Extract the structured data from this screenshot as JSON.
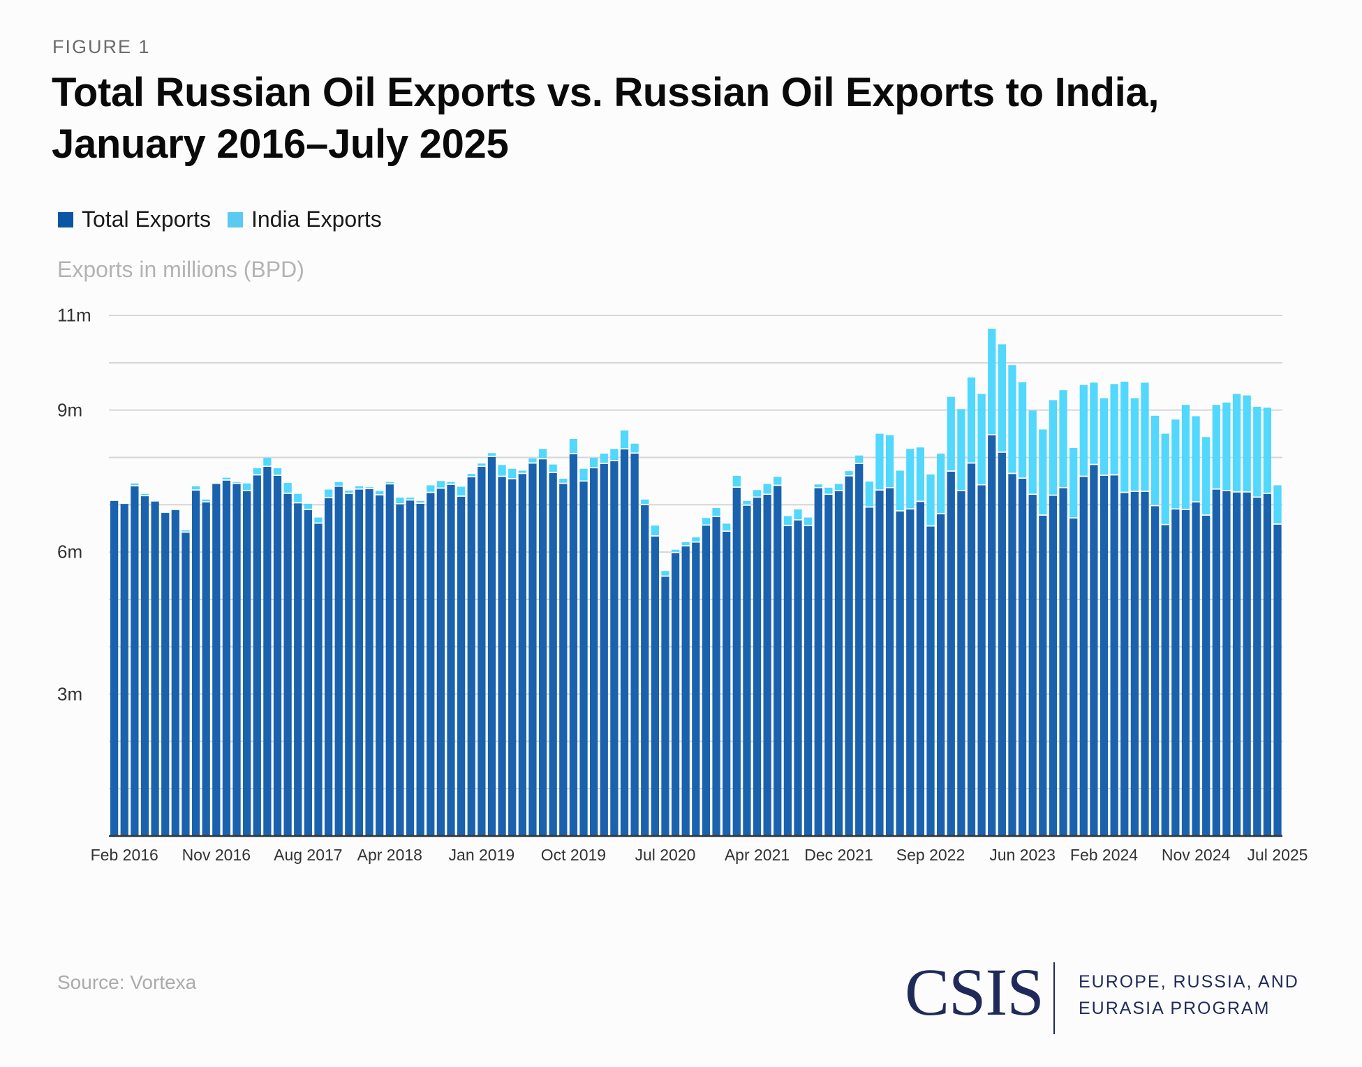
{
  "header": {
    "figure_label": "FIGURE 1",
    "title": "Total Russian Oil Exports vs. Russian Oil Exports to India, January 2016–July 2025"
  },
  "legend": [
    {
      "label": "Total Exports",
      "color": "#0b55a5"
    },
    {
      "label": "India Exports",
      "color": "#5bcaf2"
    }
  ],
  "footer": {
    "source": "Source: Vortexa",
    "logo_text": "CSIS",
    "program_line1": "EUROPE, RUSSIA, AND",
    "program_line2": "EURASIA PROGRAM"
  },
  "colors": {
    "total_bar": "#1a62ad",
    "india_bar": "#52d7fd",
    "gridline": "#d6d6d6",
    "axis": "#333333",
    "background": "#fcfcfc"
  },
  "chart_data": {
    "type": "bar",
    "stacked": true,
    "title": "Total Russian Oil Exports vs. Russian Oil Exports to India, January 2016–July 2025",
    "xlabel": "",
    "ylabel": "Exports in millions (BPD)",
    "ylim": [
      0,
      11
    ],
    "y_ticks": [
      {
        "value": 11,
        "label": "11m"
      },
      {
        "value": 9,
        "label": "9m"
      },
      {
        "value": 6,
        "label": "6m"
      },
      {
        "value": 3,
        "label": "3m"
      }
    ],
    "gridlines_every": 1,
    "grid": true,
    "legend_position": "top-left",
    "x_tick_labels": [
      {
        "index": 1,
        "label": "Feb 2016"
      },
      {
        "index": 10,
        "label": "Nov 2016"
      },
      {
        "index": 19,
        "label": "Aug 2017"
      },
      {
        "index": 27,
        "label": "Apr 2018"
      },
      {
        "index": 36,
        "label": "Jan 2019"
      },
      {
        "index": 45,
        "label": "Oct 2019"
      },
      {
        "index": 54,
        "label": "Jul 2020"
      },
      {
        "index": 63,
        "label": "Apr 2021"
      },
      {
        "index": 71,
        "label": "Dec 2021"
      },
      {
        "index": 80,
        "label": "Sep 2022"
      },
      {
        "index": 89,
        "label": "Jun 2023"
      },
      {
        "index": 97,
        "label": "Feb 2024"
      },
      {
        "index": 106,
        "label": "Nov 2024"
      },
      {
        "index": 114,
        "label": "Jul 2025"
      }
    ],
    "categories_range": "Jan 2016 – Jul 2025 (monthly, 115 bars)",
    "series": [
      {
        "name": "Total Exports",
        "values": [
          7.08,
          7.02,
          7.39,
          7.18,
          7.07,
          6.83,
          6.89,
          6.41,
          7.3,
          7.05,
          7.44,
          7.51,
          7.44,
          7.29,
          7.62,
          7.8,
          7.61,
          7.23,
          7.03,
          6.89,
          6.6,
          7.14,
          7.38,
          7.23,
          7.32,
          7.33,
          7.2,
          7.43,
          7.01,
          7.09,
          7.02,
          7.25,
          7.34,
          7.42,
          7.17,
          7.58,
          7.8,
          8.01,
          7.59,
          7.54,
          7.65,
          7.87,
          7.96,
          7.67,
          7.44,
          8.07,
          7.49,
          7.77,
          7.86,
          7.92,
          8.17,
          8.08,
          6.99,
          6.33,
          5.48,
          5.98,
          6.12,
          6.2,
          6.56,
          6.74,
          6.43,
          7.36,
          6.98,
          7.15,
          7.21,
          7.4,
          6.55,
          6.67,
          6.55,
          7.35,
          7.21,
          7.29,
          7.6,
          7.86,
          6.94,
          7.3,
          7.35,
          6.86,
          6.9,
          7.06,
          6.54,
          6.8,
          7.7,
          7.29,
          7.87,
          7.41,
          8.47,
          8.1,
          7.65,
          7.55,
          7.21,
          6.77,
          7.19,
          7.35,
          6.71,
          7.59,
          7.84,
          7.61,
          7.62,
          7.25,
          7.27,
          7.27,
          6.97,
          6.57,
          6.9,
          6.89,
          7.05,
          6.77,
          7.32,
          7.29,
          7.26,
          7.26,
          7.15,
          7.23,
          6.58
        ]
      },
      {
        "name": "India Exports",
        "values": [
          0.0,
          0.01,
          0.06,
          0.05,
          0.01,
          0.01,
          0.01,
          0.05,
          0.09,
          0.06,
          0.02,
          0.06,
          0.04,
          0.16,
          0.15,
          0.19,
          0.16,
          0.23,
          0.2,
          0.13,
          0.13,
          0.18,
          0.1,
          0.07,
          0.07,
          0.04,
          0.09,
          0.05,
          0.14,
          0.06,
          0.06,
          0.16,
          0.16,
          0.06,
          0.21,
          0.07,
          0.07,
          0.08,
          0.25,
          0.22,
          0.07,
          0.11,
          0.22,
          0.18,
          0.11,
          0.32,
          0.27,
          0.22,
          0.22,
          0.26,
          0.4,
          0.21,
          0.12,
          0.23,
          0.12,
          0.07,
          0.09,
          0.11,
          0.16,
          0.19,
          0.17,
          0.25,
          0.1,
          0.16,
          0.23,
          0.19,
          0.21,
          0.23,
          0.18,
          0.08,
          0.15,
          0.15,
          0.11,
          0.18,
          0.55,
          1.2,
          1.12,
          0.86,
          1.28,
          1.15,
          1.1,
          1.28,
          1.58,
          1.73,
          1.82,
          1.93,
          2.25,
          2.29,
          2.3,
          2.04,
          1.78,
          1.82,
          2.02,
          2.07,
          1.49,
          1.94,
          1.74,
          1.64,
          1.93,
          2.35,
          1.98,
          2.31,
          1.91,
          1.93,
          1.9,
          2.22,
          1.82,
          1.66,
          1.79,
          1.87,
          2.08,
          2.05,
          1.92,
          1.82,
          0.83
        ]
      }
    ]
  }
}
